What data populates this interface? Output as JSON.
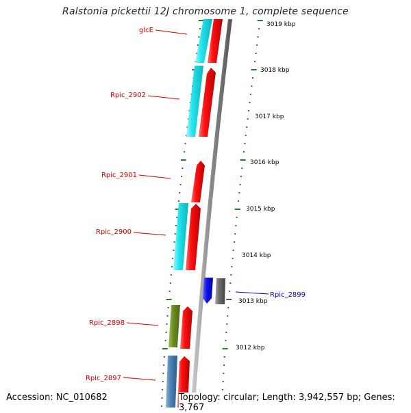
{
  "title": "Ralstonia pickettii 12J chromosome 1, complete sequence",
  "footer": {
    "accession": "Accession: NC_010682",
    "summary": "Topology: circular; Length: 3,942,557 bp; Genes: 3,767"
  },
  "colors": {
    "backbone": "#8a8a8a",
    "tick": "#2a7a2a",
    "label_forward": "#cc0000",
    "label_reverse": "#0000cc",
    "cds": "#ee1111",
    "gene_cyan": "#22e5ee",
    "gene_olive": "#6b8e23",
    "gene_steel": "#4f82b4",
    "gene_blue": "#1111ee",
    "gene_gray": "#666666"
  },
  "ticks": [
    "3019 kbp",
    "3018 kbp",
    "3017 kbp",
    "3016 kbp",
    "3015 kbp",
    "3014 kbp",
    "3013 kbp",
    "3012 kbp"
  ],
  "genes": [
    {
      "label": "glcE",
      "side": "left",
      "color": "label_forward"
    },
    {
      "label": "Rpic_2902",
      "side": "left",
      "color": "label_forward"
    },
    {
      "label": "Rpic_2901",
      "side": "left",
      "color": "label_forward"
    },
    {
      "label": "Rpic_2900",
      "side": "left",
      "color": "label_forward"
    },
    {
      "label": "Rpic_2899",
      "side": "right",
      "color": "label_reverse"
    },
    {
      "label": "Rpic_2898",
      "side": "left",
      "color": "label_forward"
    },
    {
      "label": "Rpic_2897",
      "side": "left",
      "color": "label_forward"
    }
  ]
}
